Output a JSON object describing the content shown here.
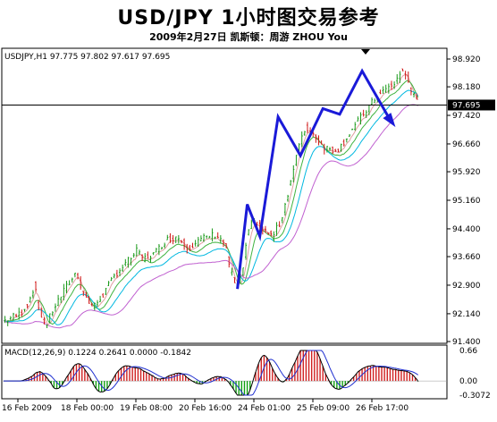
{
  "page": {
    "title": "USD/JPY 1小时图交易参考",
    "subtitle": "2009年2月27日   凯斯顿：周游 ZHOU You"
  },
  "chart_data": [
    {
      "type": "candlestick",
      "header": "USDJPY,H1  97.775 97.802 97.617 97.695",
      "current_price": 97.695,
      "current_price_label": "97.695",
      "ylim": [
        91.4,
        98.92
      ],
      "y_ticks": [
        98.92,
        98.18,
        97.42,
        96.66,
        95.92,
        95.16,
        94.4,
        93.66,
        92.9,
        92.14,
        91.4
      ],
      "y_tick_labels": [
        "98.920",
        "98.180",
        "97.420",
        "96.660",
        "95.920",
        "95.160",
        "94.400",
        "93.660",
        "92.900",
        "92.140",
        "91.400"
      ],
      "x_tick_labels": [
        "16 Feb 2009",
        "18 Feb 00:00",
        "19 Feb 08:00",
        "20 Feb 16:00",
        "24 Feb 01:00",
        "25 Feb 09:00",
        "26 Feb 17:00"
      ],
      "price_path": [
        [
          0,
          91.95
        ],
        [
          6,
          92.05
        ],
        [
          12,
          92.15
        ],
        [
          18,
          92.45
        ],
        [
          22,
          92.9
        ],
        [
          25,
          92.3
        ],
        [
          30,
          91.8
        ],
        [
          36,
          92.3
        ],
        [
          44,
          92.8
        ],
        [
          52,
          93.25
        ],
        [
          58,
          92.6
        ],
        [
          64,
          92.3
        ],
        [
          72,
          92.7
        ],
        [
          80,
          93.2
        ],
        [
          88,
          93.5
        ],
        [
          95,
          93.8
        ],
        [
          100,
          93.6
        ],
        [
          108,
          93.75
        ],
        [
          116,
          94.1
        ],
        [
          124,
          94.2
        ],
        [
          132,
          93.9
        ],
        [
          138,
          94.05
        ],
        [
          146,
          94.2
        ],
        [
          152,
          94.25
        ],
        [
          158,
          94.0
        ],
        [
          162,
          93.3
        ],
        [
          166,
          92.85
        ],
        [
          170,
          93.1
        ],
        [
          174,
          94.2
        ],
        [
          178,
          94.6
        ],
        [
          184,
          94.4
        ],
        [
          192,
          94.2
        ],
        [
          198,
          94.6
        ],
        [
          204,
          95.5
        ],
        [
          210,
          96.5
        ],
        [
          216,
          97.1
        ],
        [
          222,
          96.9
        ],
        [
          228,
          96.6
        ],
        [
          234,
          96.5
        ],
        [
          240,
          96.55
        ],
        [
          248,
          97.0
        ],
        [
          256,
          97.4
        ],
        [
          264,
          97.8
        ],
        [
          272,
          98.1
        ],
        [
          278,
          98.2
        ],
        [
          284,
          98.6
        ],
        [
          288,
          98.45
        ],
        [
          292,
          98.0
        ],
        [
          296,
          97.7
        ]
      ],
      "zigzag": [
        [
          167,
          92.8
        ],
        [
          174,
          95.05
        ],
        [
          183,
          94.2
        ],
        [
          196,
          97.38
        ],
        [
          212,
          96.35
        ],
        [
          228,
          97.6
        ],
        [
          240,
          97.45
        ],
        [
          256,
          98.6
        ],
        [
          276,
          97.3
        ]
      ],
      "moving_averages": [
        {
          "color": "#e0a0a0",
          "offset": -0.05,
          "smooth": 4
        },
        {
          "color": "#3fb33f",
          "offset": -0.15,
          "smooth": 8
        },
        {
          "color": "#00b8e0",
          "offset": -0.3,
          "smooth": 14
        },
        {
          "color": "#c060d0",
          "offset": -0.55,
          "smooth": 24
        }
      ]
    },
    {
      "type": "macd",
      "header": "MACD(12,26,9) 0.1224 0.2641 0.0000 -0.1842",
      "ylim": [
        -0.3072,
        0.66
      ],
      "y_tick_labels": [
        "0.66",
        "0.00",
        "-0.3072"
      ]
    }
  ]
}
